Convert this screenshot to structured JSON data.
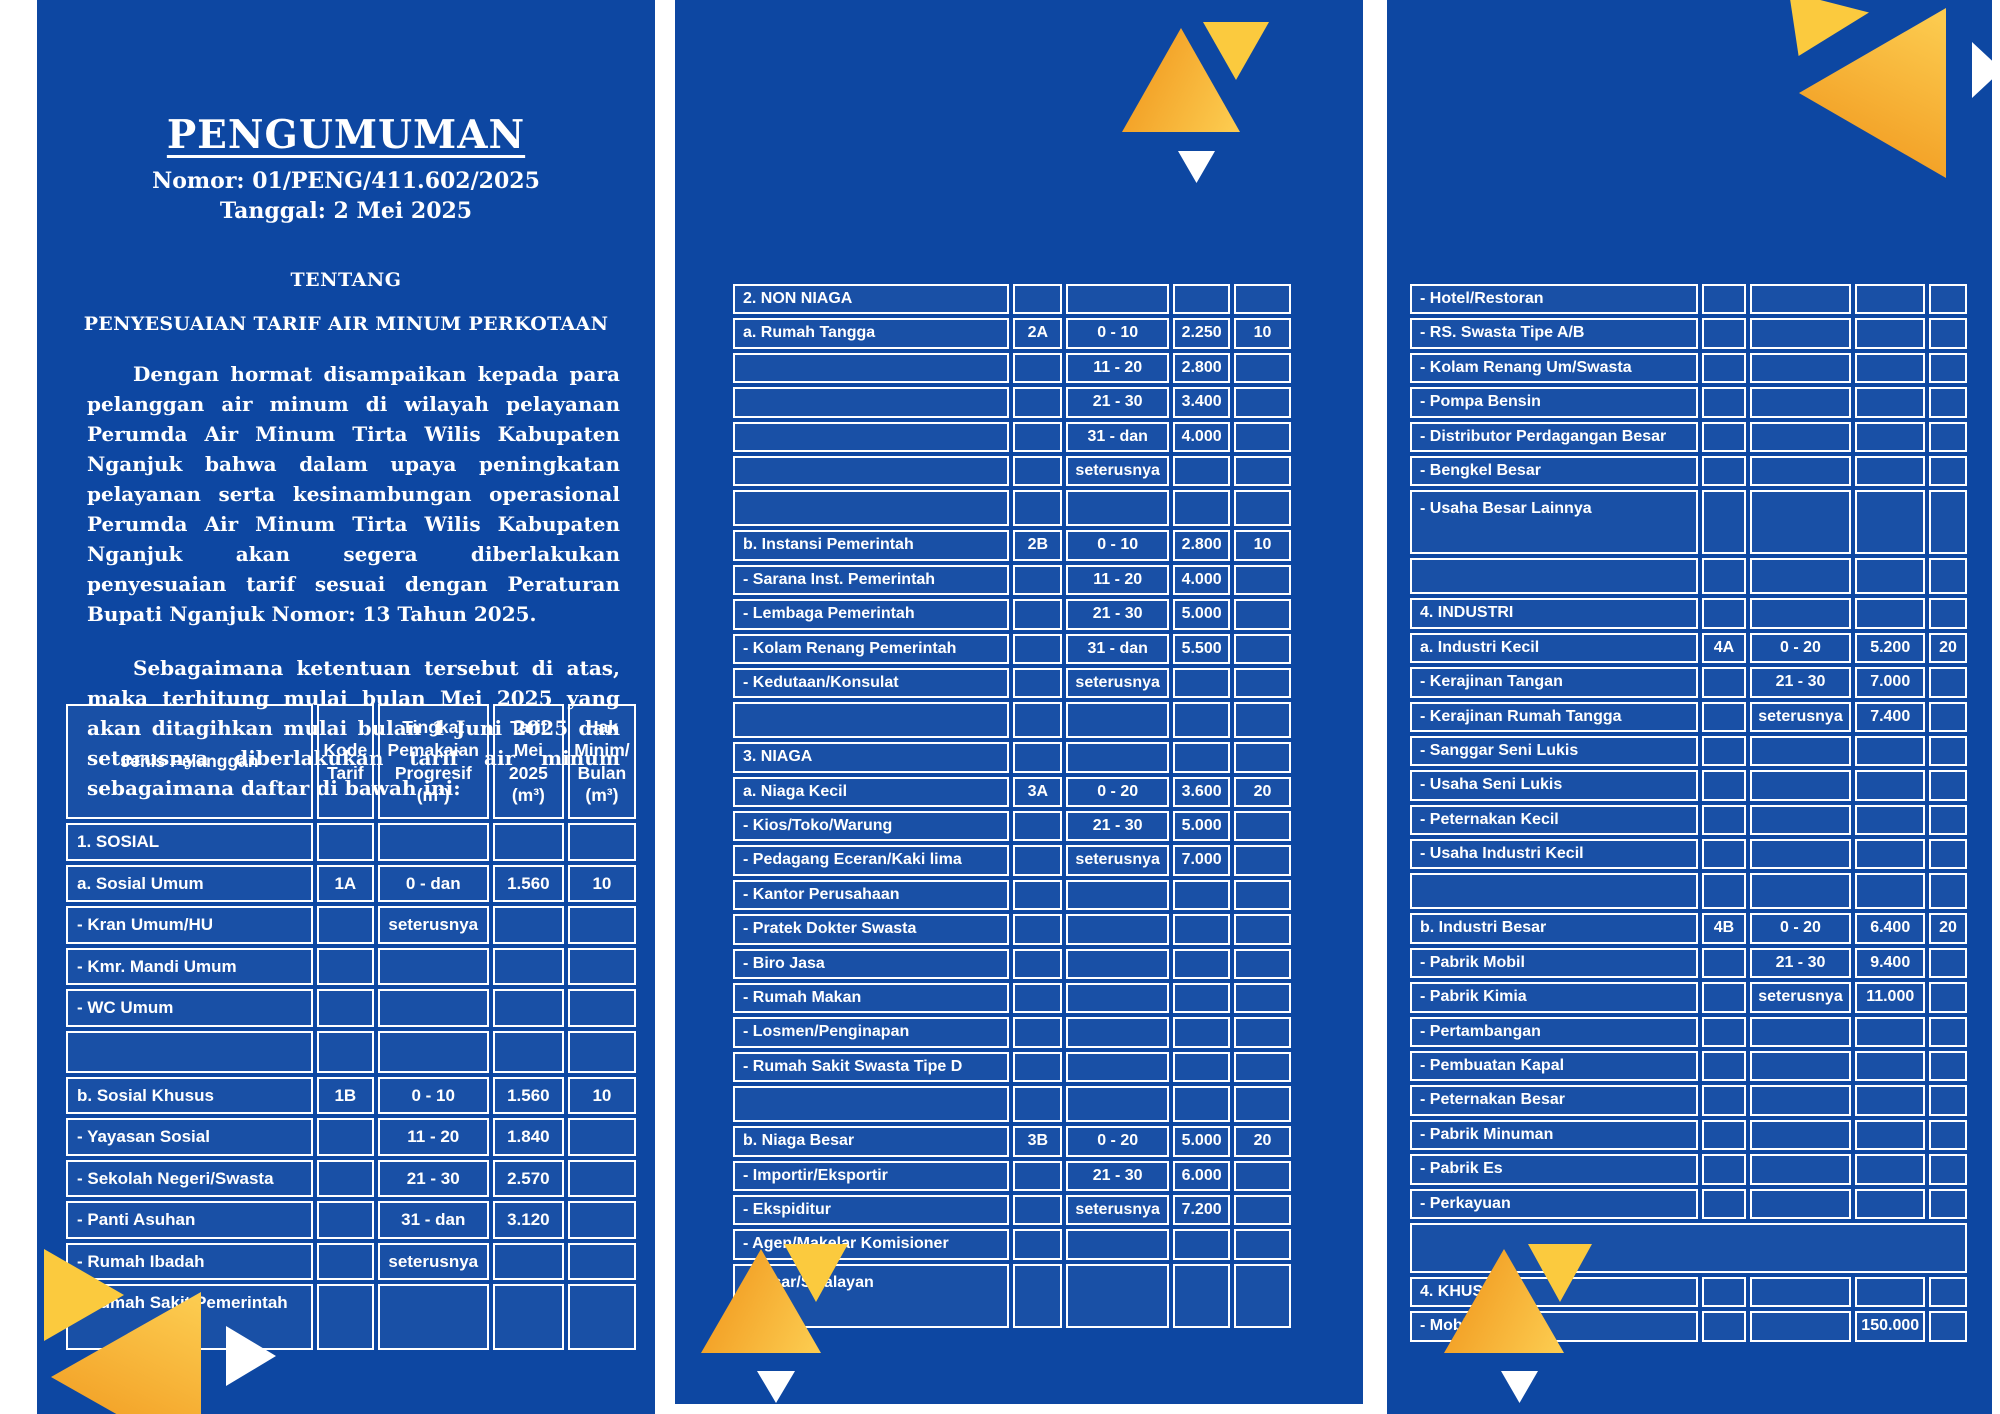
{
  "colors": {
    "panel_blue": "#0D47A2",
    "grid_white": "#FFFFFF",
    "accent_orange": "#F5A623",
    "accent_yellow": "#FBCA3E",
    "text": "#FFFFFF"
  },
  "left": {
    "title": "PENGUMUMAN",
    "number_line": "Nomor: 01/PENG/411.602/2025",
    "date_line": "Tanggal: 2 Mei 2025",
    "about_label": "TENTANG",
    "subject": "PENYESUAIAN TARIF AIR MINUM PERKOTAAN",
    "paragraph1": "Dengan hormat disampaikan kepada para pelanggan air minum di wilayah pelayanan Perumda Air Minum Tirta Wilis Kabupaten Nganjuk bahwa dalam upaya peningkatan pelayanan serta kesinambungan operasional Perumda Air Minum Tirta Wilis Kabupaten Nganjuk akan segera diberlakukan penyesuaian tarif sesuai dengan Peraturan Bupati Nganjuk Nomor: 13 Tahun 2025.",
    "paragraph2": "Sebagaimana ketentuan tersebut di atas, maka terhitung mulai bulan Mei 2025 yang akan ditagihkan mulai bulan 1 Juni 2025 dan seterusnya diberlakukan tarif air minum sebagaimana daftar di bawah ini:"
  },
  "left_table": {
    "headers": [
      "Jenis Pelanggan",
      "Kode\nTarif",
      "Tingkat\nPemakaian\nProgresif\n(m³)",
      "Tarif\nMei\n2025\n(m³)",
      "Hak\nMinim/\nBulan\n(m³)"
    ],
    "rows": [
      {
        "k": "sec",
        "c": [
          "1. SOSIAL",
          "",
          "",
          "",
          ""
        ]
      },
      {
        "k": "d",
        "c": [
          "a. Sosial Umum",
          "1A",
          "0 - dan",
          "1.560",
          "10"
        ]
      },
      {
        "k": "d",
        "c": [
          "- Kran Umum/HU",
          "",
          "seterusnya",
          "",
          ""
        ]
      },
      {
        "k": "d",
        "c": [
          "- Kmr. Mandi Umum",
          "",
          "",
          "",
          ""
        ]
      },
      {
        "k": "d",
        "c": [
          "- WC Umum",
          "",
          "",
          "",
          ""
        ]
      },
      {
        "k": "sp",
        "c": [
          "",
          "",
          "",
          "",
          ""
        ]
      },
      {
        "k": "d",
        "c": [
          "b. Sosial Khusus",
          "1B",
          "0 - 10",
          "1.560",
          "10"
        ]
      },
      {
        "k": "d",
        "c": [
          "- Yayasan Sosial",
          "",
          "11 - 20",
          "1.840",
          ""
        ]
      },
      {
        "k": "d",
        "c": [
          "- Sekolah Negeri/Swasta",
          "",
          "21 - 30",
          "2.570",
          ""
        ]
      },
      {
        "k": "d",
        "c": [
          "- Panti Asuhan",
          "",
          "31 - dan",
          "3.120",
          ""
        ]
      },
      {
        "k": "d",
        "c": [
          "- Rumah Ibadah",
          "",
          "seterusnya",
          "",
          ""
        ]
      },
      {
        "k": "d",
        "tall": true,
        "c": [
          "- Rumah Sakit Pemerintah",
          "",
          "",
          "",
          ""
        ]
      }
    ]
  },
  "mid_table": {
    "rows": [
      {
        "k": "sec",
        "c": [
          "2. NON NIAGA",
          "",
          "",
          "",
          ""
        ]
      },
      {
        "k": "d",
        "c": [
          "a. Rumah Tangga",
          "2A",
          "0 - 10",
          "2.250",
          "10"
        ]
      },
      {
        "k": "d",
        "c": [
          "",
          "",
          "11 - 20",
          "2.800",
          ""
        ]
      },
      {
        "k": "d",
        "c": [
          "",
          "",
          "21 - 30",
          "3.400",
          ""
        ]
      },
      {
        "k": "d",
        "c": [
          "",
          "",
          "31 - dan",
          "4.000",
          ""
        ]
      },
      {
        "k": "d",
        "c": [
          "",
          "",
          "seterusnya",
          "",
          ""
        ]
      },
      {
        "k": "sp",
        "c": [
          "",
          "",
          "",
          "",
          ""
        ]
      },
      {
        "k": "d",
        "c": [
          "b. Instansi Pemerintah",
          "2B",
          "0 - 10",
          "2.800",
          "10"
        ]
      },
      {
        "k": "d",
        "c": [
          "- Sarana Inst. Pemerintah",
          "",
          "11 - 20",
          "4.000",
          ""
        ]
      },
      {
        "k": "d",
        "c": [
          "- Lembaga Pemerintah",
          "",
          "21 - 30",
          "5.000",
          ""
        ]
      },
      {
        "k": "d",
        "c": [
          "- Kolam Renang Pemerintah",
          "",
          "31 - dan",
          "5.500",
          ""
        ]
      },
      {
        "k": "d",
        "c": [
          "- Kedutaan/Konsulat",
          "",
          "seterusnya",
          "",
          ""
        ]
      },
      {
        "k": "sp",
        "c": [
          "",
          "",
          "",
          "",
          ""
        ]
      },
      {
        "k": "sec",
        "c": [
          "3. NIAGA",
          "",
          "",
          "",
          ""
        ]
      },
      {
        "k": "d",
        "c": [
          "a. Niaga Kecil",
          "3A",
          "0 - 20",
          "3.600",
          "20"
        ]
      },
      {
        "k": "d",
        "c": [
          "- Kios/Toko/Warung",
          "",
          "21 - 30",
          "5.000",
          ""
        ]
      },
      {
        "k": "d",
        "c": [
          "- Pedagang Eceran/Kaki lima",
          "",
          "seterusnya",
          "7.000",
          ""
        ]
      },
      {
        "k": "d",
        "c": [
          "- Kantor Perusahaan",
          "",
          "",
          "",
          ""
        ]
      },
      {
        "k": "d",
        "c": [
          "- Pratek Dokter Swasta",
          "",
          "",
          "",
          ""
        ]
      },
      {
        "k": "d",
        "c": [
          "- Biro Jasa",
          "",
          "",
          "",
          ""
        ]
      },
      {
        "k": "d",
        "c": [
          "- Rumah Makan",
          "",
          "",
          "",
          ""
        ]
      },
      {
        "k": "d",
        "c": [
          "- Losmen/Penginapan",
          "",
          "",
          "",
          ""
        ]
      },
      {
        "k": "d",
        "c": [
          "- Rumah Sakit Swasta Tipe D",
          "",
          "",
          "",
          ""
        ]
      },
      {
        "k": "sp",
        "c": [
          "",
          "",
          "",
          "",
          ""
        ]
      },
      {
        "k": "d",
        "c": [
          "b. Niaga Besar",
          "3B",
          "0 - 20",
          "5.000",
          "20"
        ]
      },
      {
        "k": "d",
        "c": [
          "- Importir/Eksportir",
          "",
          "21 - 30",
          "6.000",
          ""
        ]
      },
      {
        "k": "d",
        "c": [
          "- Ekspiditur",
          "",
          "seterusnya",
          "7.200",
          ""
        ]
      },
      {
        "k": "d",
        "c": [
          "- Agen/Makelar Komisioner",
          "",
          "",
          "",
          ""
        ]
      },
      {
        "k": "d",
        "tall": true,
        "c": [
          "- Pasar/Swalayan",
          "",
          "",
          "",
          ""
        ]
      }
    ]
  },
  "right_table": {
    "rows": [
      {
        "k": "d",
        "c": [
          "- Hotel/Restoran",
          "",
          "",
          "",
          ""
        ]
      },
      {
        "k": "d",
        "c": [
          "- RS. Swasta Tipe A/B",
          "",
          "",
          "",
          ""
        ]
      },
      {
        "k": "d",
        "c": [
          "- Kolam Renang Um/Swasta",
          "",
          "",
          "",
          ""
        ]
      },
      {
        "k": "d",
        "c": [
          "- Pompa Bensin",
          "",
          "",
          "",
          ""
        ]
      },
      {
        "k": "d",
        "c": [
          "- Distributor Perdagangan Besar",
          "",
          "",
          "",
          ""
        ]
      },
      {
        "k": "d",
        "c": [
          "- Bengkel Besar",
          "",
          "",
          "",
          ""
        ]
      },
      {
        "k": "d",
        "tall": true,
        "c": [
          "- Usaha Besar Lainnya",
          "",
          "",
          "",
          ""
        ]
      },
      {
        "k": "sp",
        "c": [
          "",
          "",
          "",
          "",
          ""
        ]
      },
      {
        "k": "sec",
        "c": [
          "4. INDUSTRI",
          "",
          "",
          "",
          ""
        ]
      },
      {
        "k": "d",
        "c": [
          "a. Industri Kecil",
          "4A",
          "0 - 20",
          "5.200",
          "20"
        ]
      },
      {
        "k": "d",
        "c": [
          "- Kerajinan Tangan",
          "",
          "21 - 30",
          "7.000",
          ""
        ]
      },
      {
        "k": "d",
        "c": [
          "- Kerajinan Rumah Tangga",
          "",
          "seterusnya",
          "7.400",
          ""
        ]
      },
      {
        "k": "d",
        "c": [
          "- Sanggar Seni Lukis",
          "",
          "",
          "",
          ""
        ]
      },
      {
        "k": "d",
        "c": [
          "- Usaha Seni Lukis",
          "",
          "",
          "",
          ""
        ]
      },
      {
        "k": "d",
        "c": [
          "- Peternakan Kecil",
          "",
          "",
          "",
          ""
        ]
      },
      {
        "k": "d",
        "c": [
          "- Usaha Industri Kecil",
          "",
          "",
          "",
          ""
        ]
      },
      {
        "k": "sp",
        "c": [
          "",
          "",
          "",
          "",
          ""
        ]
      },
      {
        "k": "d",
        "c": [
          "b. Industri Besar",
          "4B",
          "0 - 20",
          "6.400",
          "20"
        ]
      },
      {
        "k": "d",
        "c": [
          "- Pabrik Mobil",
          "",
          "21 - 30",
          "9.400",
          ""
        ]
      },
      {
        "k": "d",
        "c": [
          "- Pabrik Kimia",
          "",
          "seterusnya",
          "11.000",
          ""
        ]
      },
      {
        "k": "d",
        "c": [
          "- Pertambangan",
          "",
          "",
          "",
          ""
        ]
      },
      {
        "k": "d",
        "c": [
          "- Pembuatan Kapal",
          "",
          "",
          "",
          ""
        ]
      },
      {
        "k": "d",
        "c": [
          "- Peternakan Besar",
          "",
          "",
          "",
          ""
        ]
      },
      {
        "k": "d",
        "c": [
          "- Pabrik Minuman",
          "",
          "",
          "",
          ""
        ]
      },
      {
        "k": "d",
        "c": [
          "- Pabrik Es",
          "",
          "",
          "",
          ""
        ]
      },
      {
        "k": "d",
        "c": [
          "- Perkayuan",
          "",
          "",
          "",
          ""
        ]
      },
      {
        "k": "spf"
      },
      {
        "k": "sec",
        "c": [
          "4. KHUSUS",
          "",
          "",
          "",
          ""
        ]
      },
      {
        "k": "d",
        "c": [
          "- Mobil Tangki",
          "",
          "",
          "150.000",
          ""
        ]
      }
    ]
  }
}
